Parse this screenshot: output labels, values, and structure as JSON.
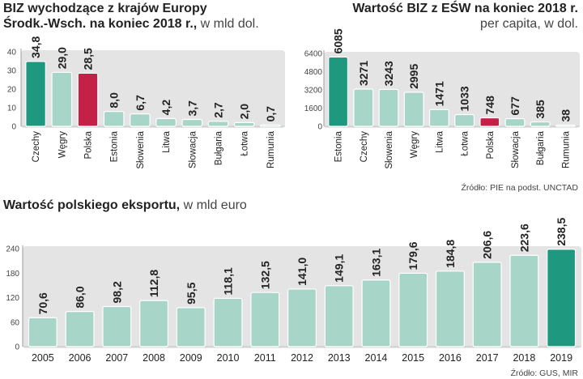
{
  "chart_data": [
    {
      "id": "biz_outward",
      "type": "bar",
      "title": "BIZ wychodzące z krajów Europy",
      "title2": "Środk.-Wsch. na koniec 2018 r.,",
      "unit": "w mld dol.",
      "categories": [
        "Czechy",
        "Węgry",
        "Polska",
        "Estonia",
        "Słowenia",
        "Litwa",
        "Słowacja",
        "Bułgaria",
        "Łotwa",
        "Rumunia"
      ],
      "values": [
        34.8,
        29.0,
        28.5,
        8.0,
        6.7,
        4.2,
        3.7,
        2.7,
        2.0,
        0.7
      ],
      "value_labels": [
        "34,8",
        "29,0",
        "28,5",
        "8,0",
        "6,7",
        "4,2",
        "3,7",
        "2,7",
        "2,0",
        "0,7"
      ],
      "yticks": [
        0,
        10,
        20,
        30,
        40
      ],
      "ylim": [
        0,
        40
      ],
      "highlight": {
        "Czechy": "#1e9980",
        "Polska": "#c42148"
      }
    },
    {
      "id": "biz_per_capita",
      "type": "bar",
      "title": "Wartość BIZ z EŚW na koniec 2018 r.",
      "unit": "per capita, w dol.",
      "categories": [
        "Estonia",
        "Czechy",
        "Słowenia",
        "Węgry",
        "Litwa",
        "Łotwa",
        "Polska",
        "Słowacja",
        "Bułgaria",
        "Rumunia"
      ],
      "values": [
        6085,
        3271,
        3243,
        2995,
        1471,
        1033,
        748,
        677,
        385,
        38
      ],
      "value_labels": [
        "6085",
        "3271",
        "3243",
        "2995",
        "1471",
        "1033",
        "748",
        "677",
        "385",
        "38"
      ],
      "yticks": [
        0,
        1600,
        3200,
        4800,
        6400
      ],
      "ylim": [
        0,
        6400
      ],
      "highlight": {
        "Estonia": "#1e9980",
        "Polska": "#c42148"
      },
      "source": "Źródło: PIE na podst. UNCTAD"
    },
    {
      "id": "pl_exports",
      "type": "bar",
      "title": "Wartość polskiego eksportu,",
      "unit": "w mld euro",
      "categories": [
        "2005",
        "2006",
        "2007",
        "2008",
        "2009",
        "2010",
        "2011",
        "2012",
        "2013",
        "2014",
        "2015",
        "2016",
        "2017",
        "2018",
        "2019"
      ],
      "values": [
        70.6,
        86.0,
        98.2,
        112.8,
        95.5,
        118.1,
        132.5,
        141.0,
        149.1,
        163.1,
        179.6,
        184.8,
        206.6,
        223.6,
        238.5
      ],
      "value_labels": [
        "70,6",
        "86,0",
        "98,2",
        "112,8",
        "95,5",
        "118,1",
        "132,5",
        "141,0",
        "149,1",
        "163,1",
        "179,6",
        "184,8",
        "206,6",
        "223,6",
        "238,5"
      ],
      "yticks": [
        0,
        60,
        120,
        180,
        240
      ],
      "ylim": [
        0,
        240
      ],
      "highlight": {
        "2019": "#1e9980"
      },
      "source": "Źródło: GUS, MIR"
    }
  ],
  "colors": {
    "bar": "#a7d5c8",
    "bar_border": "#ffffff",
    "bg_band": "#e4e4e4",
    "teal": "#1e9980",
    "red": "#c42148"
  }
}
